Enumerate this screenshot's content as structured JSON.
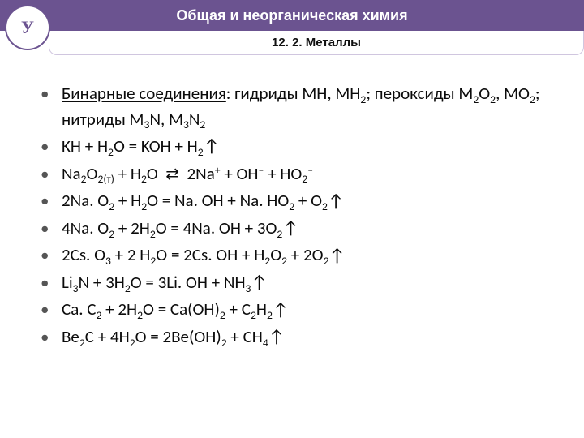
{
  "header": {
    "title": "Общая и неорганическая химия",
    "subtitle": "12. 2. Металлы",
    "logo_text": "У"
  },
  "items": [
    "<span class=\"underline\">Бинарные соединения</span>: гидриды MH, MH<span class=\"sub\">2</span>; пероксиды M<span class=\"sub\">2</span>O<span class=\"sub\">2</span>, MO<span class=\"sub\">2</span>; нитриды M<span class=\"sub\">3</span>N, M<span class=\"sub\">3</span>N<span class=\"sub\">2</span>",
    "KH + H<span class=\"sub\">2</span>O = KOH + H<span class=\"sub\">2</span><span class=\"arrow-up\">↑</span>",
    "Na<span class=\"sub\">2</span>O<span class=\"sub\">2(т)</span> + H<span class=\"sub\">2</span>O &nbsp;<span class=\"rev\">⇄</span>&nbsp; 2Na<span class=\"sup\">+</span> + OH<span class=\"sup\">–</span> + HO<span class=\"sub\">2</span><span class=\"sup\">–</span>",
    "2Na. O<span class=\"sub\">2</span> + H<span class=\"sub\">2</span>O = Na. OH + Na. HO<span class=\"sub\">2</span> + O<span class=\"sub\">2</span><span class=\"arrow-up\">↑</span>",
    "4Na. O<span class=\"sub\">2</span> + 2H<span class=\"sub\">2</span>O = 4Na. OH + 3O<span class=\"sub\">2</span><span class=\"arrow-up\">↑</span>",
    "2Cs. O<span class=\"sub\">3</span> + 2 H<span class=\"sub\">2</span>O = 2Cs. OH + H<span class=\"sub\">2</span>O<span class=\"sub\">2</span> + 2O<span class=\"sub\">2</span><span class=\"arrow-up\">↑</span>",
    "Li<span class=\"sub\">3</span>N + 3H<span class=\"sub\">2</span>O = 3Li. OH + NH<span class=\"sub\">3</span><span class=\"arrow-up\">↑</span>",
    "Ca. C<span class=\"sub\">2</span> + 2H<span class=\"sub\">2</span>O = Ca(OH)<span class=\"sub\">2</span> + C<span class=\"sub\">2</span>H<span class=\"sub\">2</span><span class=\"arrow-up\">↑</span>",
    "Be<span class=\"sub\">2</span>C + 4H<span class=\"sub\">2</span>O = 2Be(OH)<span class=\"sub\">2</span> + CH<span class=\"sub\">4</span><span class=\"arrow-up\">↑</span>"
  ]
}
